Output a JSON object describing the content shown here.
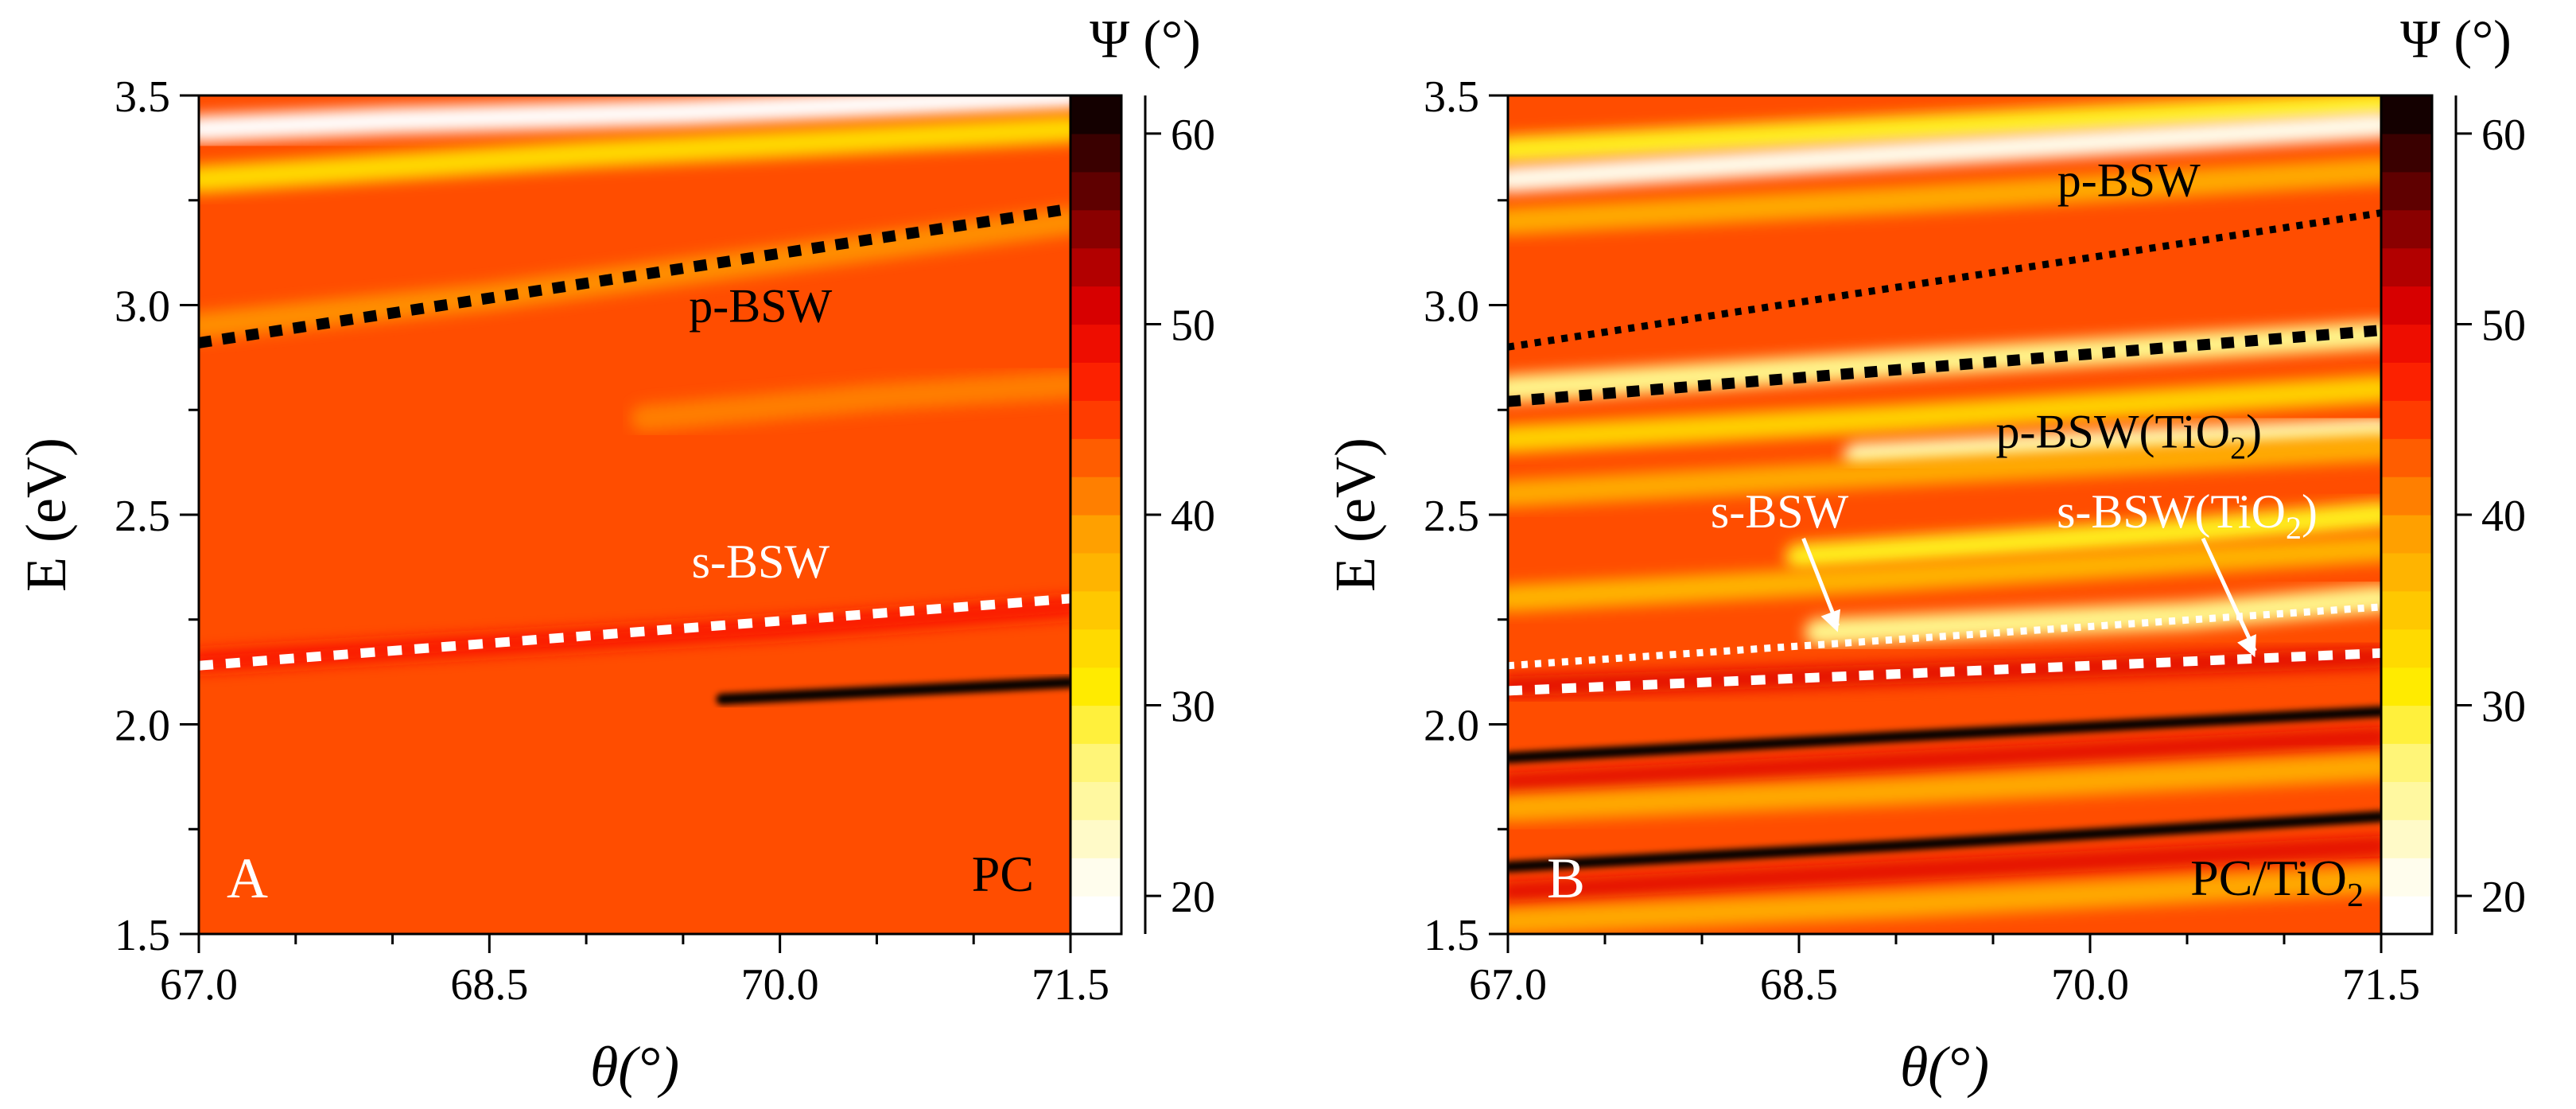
{
  "chart_data": [
    {
      "type": "heatmap",
      "panel_label": "A",
      "sample_label": "PC",
      "xlabel": "θ(°)",
      "ylabel": "E (eV)",
      "colorbar_label": "Ψ (°)",
      "xlim": [
        67.0,
        71.5
      ],
      "ylim": [
        1.5,
        3.5
      ],
      "x_ticks": [
        "67.0",
        "68.5",
        "70.0",
        "71.5"
      ],
      "y_ticks": [
        "1.5",
        "2.0",
        "2.5",
        "3.0",
        "3.5"
      ],
      "colorbar_range": [
        18,
        62
      ],
      "colorbar_ticks": [
        "20",
        "30",
        "40",
        "50",
        "60"
      ],
      "background_psi": 44,
      "features": [
        {
          "kind": "bright",
          "psi": 20,
          "points": [
            [
              67.0,
              3.42
            ],
            [
              68.0,
              3.44
            ],
            [
              69.5,
              3.46
            ],
            [
              71.5,
              3.5
            ]
          ]
        },
        {
          "kind": "bright",
          "psi": 33,
          "points": [
            [
              67.0,
              3.3
            ],
            [
              69.0,
              3.36
            ],
            [
              71.5,
              3.42
            ]
          ]
        },
        {
          "kind": "bright",
          "psi": 40,
          "points": [
            [
              67.0,
              2.95
            ],
            [
              68.5,
              3.02
            ],
            [
              70.0,
              3.11
            ],
            [
              71.5,
              3.2
            ]
          ]
        },
        {
          "kind": "bright",
          "psi": 41,
          "points": [
            [
              69.3,
              2.73
            ],
            [
              70.5,
              2.78
            ],
            [
              71.5,
              2.81
            ]
          ]
        },
        {
          "kind": "dark",
          "psi": 62,
          "points": [
            [
              69.7,
              2.06
            ],
            [
              70.6,
              2.08
            ],
            [
              71.5,
              2.1
            ]
          ]
        },
        {
          "kind": "dark",
          "psi": 48,
          "points": [
            [
              67.0,
              2.15
            ],
            [
              68.5,
              2.19
            ],
            [
              70.0,
              2.23
            ],
            [
              71.5,
              2.28
            ]
          ]
        }
      ],
      "modes": [
        {
          "label": "p-BSW",
          "style": "black-dashed",
          "x": [
            67.0,
            71.5
          ],
          "y": [
            2.91,
            3.23
          ],
          "label_at": [
            69.9,
            2.96
          ],
          "label_color": "#000000"
        },
        {
          "label": "s-BSW",
          "style": "white-dashed",
          "x": [
            67.0,
            71.5
          ],
          "y": [
            2.14,
            2.3
          ],
          "label_at": [
            69.9,
            2.35
          ],
          "label_color": "#ffffff"
        }
      ]
    },
    {
      "type": "heatmap",
      "panel_label": "B",
      "sample_label": "PC/TiO",
      "sample_label_sub": "2",
      "xlabel": "θ(°)",
      "ylabel": "E (eV)",
      "colorbar_label": "Ψ (°)",
      "xlim": [
        67.0,
        71.5
      ],
      "ylim": [
        1.5,
        3.5
      ],
      "x_ticks": [
        "67.0",
        "68.5",
        "70.0",
        "71.5"
      ],
      "y_ticks": [
        "1.5",
        "2.0",
        "2.5",
        "3.0",
        "3.5"
      ],
      "colorbar_range": [
        18,
        62
      ],
      "colorbar_ticks": [
        "20",
        "30",
        "40",
        "50",
        "60"
      ],
      "background_psi": 44,
      "features": [
        {
          "kind": "bright",
          "psi": 30,
          "points": [
            [
              67.0,
              3.37
            ],
            [
              69.0,
              3.42
            ],
            [
              71.5,
              3.48
            ]
          ]
        },
        {
          "kind": "bright",
          "psi": 21,
          "points": [
            [
              67.0,
              3.3
            ],
            [
              69.0,
              3.36
            ],
            [
              71.5,
              3.43
            ]
          ]
        },
        {
          "kind": "bright",
          "psi": 38,
          "points": [
            [
              67.0,
              3.2
            ],
            [
              69.0,
              3.25
            ],
            [
              71.5,
              3.32
            ]
          ]
        },
        {
          "kind": "bright",
          "psi": 26,
          "points": [
            [
              67.0,
              2.8
            ],
            [
              69.0,
              2.86
            ],
            [
              71.5,
              2.93
            ]
          ]
        },
        {
          "kind": "bright",
          "psi": 34,
          "points": [
            [
              67.0,
              2.68
            ],
            [
              69.0,
              2.73
            ],
            [
              71.5,
              2.8
            ]
          ]
        },
        {
          "kind": "bright",
          "psi": 24,
          "points": [
            [
              68.8,
              2.64
            ],
            [
              70.5,
              2.68
            ],
            [
              71.5,
              2.7
            ]
          ]
        },
        {
          "kind": "bright",
          "psi": 38,
          "points": [
            [
              67.0,
              2.55
            ],
            [
              69.0,
              2.6
            ],
            [
              71.5,
              2.66
            ]
          ]
        },
        {
          "kind": "bright",
          "psi": 30,
          "points": [
            [
              68.5,
              2.4
            ],
            [
              70.5,
              2.46
            ],
            [
              71.5,
              2.5
            ]
          ]
        },
        {
          "kind": "bright",
          "psi": 37,
          "points": [
            [
              67.0,
              2.3
            ],
            [
              69.0,
              2.35
            ],
            [
              71.5,
              2.42
            ]
          ]
        },
        {
          "kind": "bright",
          "psi": 26,
          "points": [
            [
              68.6,
              2.22
            ],
            [
              70.5,
              2.26
            ],
            [
              71.5,
              2.3
            ]
          ]
        },
        {
          "kind": "dark",
          "psi": 50,
          "points": [
            [
              67.0,
              2.09
            ],
            [
              69.0,
              2.12
            ],
            [
              71.5,
              2.16
            ]
          ]
        },
        {
          "kind": "dark",
          "psi": 62,
          "points": [
            [
              67.0,
              1.92
            ],
            [
              69.0,
              1.97
            ],
            [
              71.5,
              2.03
            ]
          ]
        },
        {
          "kind": "dark",
          "psi": 50,
          "points": [
            [
              67.0,
              1.86
            ],
            [
              69.0,
              1.91
            ],
            [
              71.5,
              1.97
            ]
          ]
        },
        {
          "kind": "bright",
          "psi": 38,
          "points": [
            [
              67.0,
              1.8
            ],
            [
              69.0,
              1.84
            ],
            [
              71.5,
              1.9
            ]
          ]
        },
        {
          "kind": "dark",
          "psi": 62,
          "points": [
            [
              67.0,
              1.66
            ],
            [
              69.0,
              1.71
            ],
            [
              71.5,
              1.78
            ]
          ]
        },
        {
          "kind": "dark",
          "psi": 50,
          "points": [
            [
              67.0,
              1.6
            ],
            [
              69.0,
              1.65
            ],
            [
              71.5,
              1.71
            ]
          ]
        },
        {
          "kind": "bright",
          "psi": 38,
          "points": [
            [
              67.0,
              1.53
            ],
            [
              69.0,
              1.57
            ],
            [
              71.5,
              1.63
            ]
          ]
        }
      ],
      "modes": [
        {
          "label": "p-BSW",
          "style": "black-dotted",
          "x": [
            67.0,
            71.5
          ],
          "y": [
            2.9,
            3.22
          ],
          "label_at": [
            70.2,
            3.26
          ],
          "label_color": "#000000"
        },
        {
          "label": "p-BSW(TiO",
          "label_sub": "2",
          "label_tail": ")",
          "style": "black-dashed",
          "x": [
            67.0,
            71.5
          ],
          "y": [
            2.77,
            2.94
          ],
          "label_at": [
            70.2,
            2.66
          ],
          "label_color": "#000000"
        },
        {
          "label": "s-BSW",
          "style": "white-dotted",
          "x": [
            67.0,
            71.5
          ],
          "y": [
            2.14,
            2.28
          ],
          "label_at": [
            68.4,
            2.47
          ],
          "label_color": "#ffffff",
          "arrow_to": [
            68.7,
            2.22
          ]
        },
        {
          "label": "s-BSW(TiO",
          "label_sub": "2",
          "label_tail": ")",
          "style": "white-dashed",
          "x": [
            67.0,
            71.5
          ],
          "y": [
            2.08,
            2.17
          ],
          "label_at": [
            70.5,
            2.47
          ],
          "label_color": "#ffffff",
          "arrow_to": [
            70.85,
            2.16
          ]
        }
      ]
    }
  ]
}
